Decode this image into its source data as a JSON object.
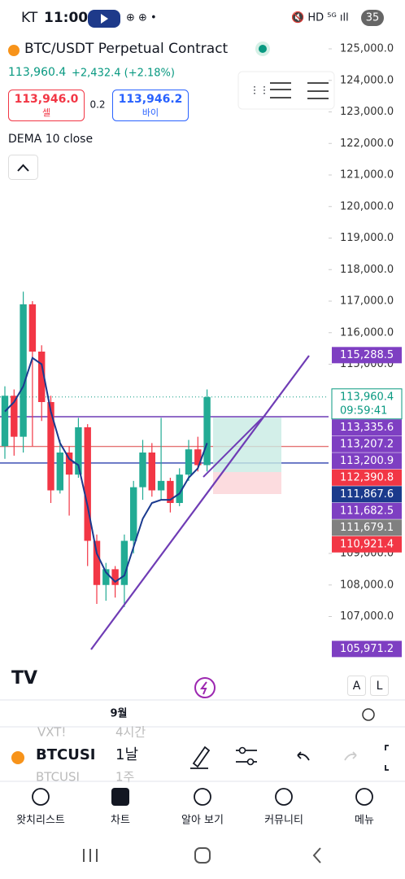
{
  "status_bar": {
    "carrier": "KT",
    "time": "11:00",
    "battery": "35"
  },
  "header": {
    "symbol": "BTC/USDT Perpetual Contract",
    "price": "113,960.4",
    "change": "+2,432.4 (+2.18%)",
    "sell_price": "113,946.0",
    "sell_label": "셀",
    "spread": "0.2",
    "buy_price": "113,946.2",
    "buy_label": "바이",
    "indicator": "DEMA 10 close"
  },
  "chart": {
    "yticks": [
      {
        "value": 125000,
        "label": "125,000.0"
      },
      {
        "value": 124000,
        "label": "124,000.0"
      },
      {
        "value": 123000,
        "label": "123,000.0"
      },
      {
        "value": 122000,
        "label": "122,000.0"
      },
      {
        "value": 121000,
        "label": "121,000.0"
      },
      {
        "value": 120000,
        "label": "120,000.0"
      },
      {
        "value": 119000,
        "label": "119,000.0"
      },
      {
        "value": 118000,
        "label": "118,000.0"
      },
      {
        "value": 117000,
        "label": "117,000.0"
      },
      {
        "value": 116000,
        "label": "116,000.0"
      },
      {
        "value": 115000,
        "label": "115,000.0"
      },
      {
        "value": 109000,
        "label": "109,000.0"
      },
      {
        "value": 108000,
        "label": "108,000.0"
      },
      {
        "value": 107000,
        "label": "107,000.0"
      }
    ],
    "candles": [
      {
        "open": 112400,
        "high": 114300,
        "low": 112000,
        "close": 114000
      },
      {
        "open": 114000,
        "high": 114200,
        "low": 112100,
        "close": 112700
      },
      {
        "open": 112700,
        "high": 117300,
        "low": 112200,
        "close": 116900
      },
      {
        "open": 116900,
        "high": 117000,
        "low": 112400,
        "close": 115400
      },
      {
        "open": 115400,
        "high": 115600,
        "low": 113200,
        "close": 113800
      },
      {
        "open": 113800,
        "high": 114000,
        "low": 110600,
        "close": 111000
      },
      {
        "open": 111000,
        "high": 112600,
        "low": 110900,
        "close": 112200
      },
      {
        "open": 112200,
        "high": 112400,
        "low": 110200,
        "close": 111500
      },
      {
        "open": 111500,
        "high": 113300,
        "low": 111400,
        "close": 113000
      },
      {
        "open": 113000,
        "high": 113100,
        "low": 108600,
        "close": 109400
      },
      {
        "open": 109400,
        "high": 109600,
        "low": 107400,
        "close": 108000
      },
      {
        "open": 108000,
        "high": 108700,
        "low": 107500,
        "close": 108500
      },
      {
        "open": 108500,
        "high": 108600,
        "low": 107600,
        "close": 108000
      },
      {
        "open": 108000,
        "high": 109600,
        "low": 107300,
        "close": 109400
      },
      {
        "open": 109400,
        "high": 111300,
        "low": 109000,
        "close": 111100
      },
      {
        "open": 111100,
        "high": 112600,
        "low": 110700,
        "close": 112200
      },
      {
        "open": 112200,
        "high": 112500,
        "low": 110800,
        "close": 111000
      },
      {
        "open": 111000,
        "high": 113300,
        "low": 110700,
        "close": 111300
      },
      {
        "open": 111300,
        "high": 111400,
        "low": 110300,
        "close": 110600
      },
      {
        "open": 110600,
        "high": 111700,
        "low": 110500,
        "close": 111500
      },
      {
        "open": 111500,
        "high": 112600,
        "low": 111300,
        "close": 112300
      },
      {
        "open": 112300,
        "high": 112700,
        "low": 111600,
        "close": 111800
      },
      {
        "open": 111800,
        "high": 114200,
        "low": 111600,
        "close": 113960.4
      }
    ],
    "dema": [
      113500,
      113800,
      114300,
      115200,
      115000,
      113500,
      112500,
      112000,
      111800,
      110500,
      109000,
      108400,
      108100,
      108300,
      109200,
      110100,
      110600,
      110700,
      110700,
      110900,
      111400,
      111700,
      112500
    ],
    "price_labels": [
      {
        "value": 115288.5,
        "label": "115,288.5",
        "color": "#7e3fc2"
      },
      {
        "value": 113960.4,
        "label": "113,960.4",
        "color": "#ffffff"
      },
      {
        "value": 113335.6,
        "label": "113,335.6",
        "color": "#7e3fc2"
      },
      {
        "value": 113207.2,
        "label": "113,207.2",
        "color": "#7e3fc2"
      },
      {
        "value": 113200.9,
        "label": "113,200.9",
        "color": "#7e3fc2"
      },
      {
        "value": 112390.8,
        "label": "112,390.8",
        "color": "#f23645"
      },
      {
        "value": 111867.6,
        "label": "111,867.6",
        "color": "#1b3a8c"
      },
      {
        "value": 111682.5,
        "label": "111,682.5",
        "color": "#7e3fc2"
      },
      {
        "value": 111679.1,
        "label": "111,679.1",
        "color": "#808080"
      },
      {
        "value": 110921.4,
        "label": "110,921.4",
        "color": "#f23645"
      },
      {
        "value": 105971.2,
        "label": "105,971.2",
        "color": "#7e3fc2"
      }
    ],
    "countdown": "09:59:41",
    "x_label": "9월",
    "scale_a": "A",
    "scale_l": "L"
  },
  "toolbar": {
    "symbol": "BTCUSI",
    "interval": "1날",
    "behind_1": "VXT!",
    "behind_2": "4시간",
    "behind_3": "BTCUSI",
    "behind_4": "1주"
  },
  "nav": [
    "왓치리스트",
    "차트",
    "알아 보기",
    "커뮤니티",
    "메뉴"
  ]
}
